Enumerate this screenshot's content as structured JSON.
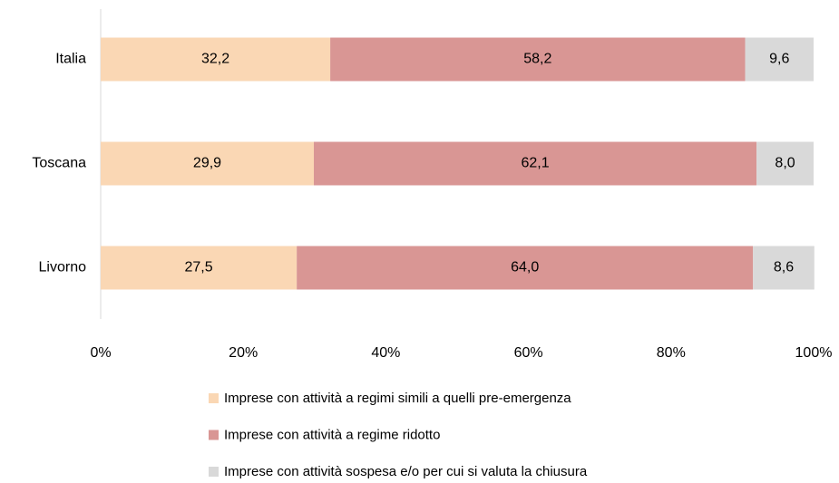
{
  "chart_data": {
    "type": "bar",
    "orientation": "horizontal",
    "stacked": true,
    "categories": [
      "Italia",
      "Toscana",
      "Livorno"
    ],
    "series": [
      {
        "name": "Imprese con attività a regimi simili a quelli pre-emergenza",
        "color": "#fad7b4",
        "values": [
          32.2,
          29.9,
          27.5
        ],
        "value_labels": [
          "32,2",
          "29,9",
          "27,5"
        ]
      },
      {
        "name": "Imprese con attività a regime ridotto",
        "color": "#d99694",
        "values": [
          58.2,
          62.1,
          64.0
        ],
        "value_labels": [
          "58,2",
          "62,1",
          "64,0"
        ]
      },
      {
        "name": "Imprese con attività sospesa e/o per cui si valuta la chiusura",
        "color": "#d9d9d9",
        "values": [
          9.6,
          8.0,
          8.6
        ],
        "value_labels": [
          "9,6",
          "8,0",
          "8,6"
        ]
      }
    ],
    "xlim": [
      0,
      100
    ],
    "xticks": [
      {
        "value": 0,
        "label": "0%"
      },
      {
        "value": 20,
        "label": "20%"
      },
      {
        "value": 40,
        "label": "40%"
      },
      {
        "value": 60,
        "label": "60%"
      },
      {
        "value": 80,
        "label": "80%"
      },
      {
        "value": 100,
        "label": "100%"
      }
    ],
    "grid": false
  }
}
